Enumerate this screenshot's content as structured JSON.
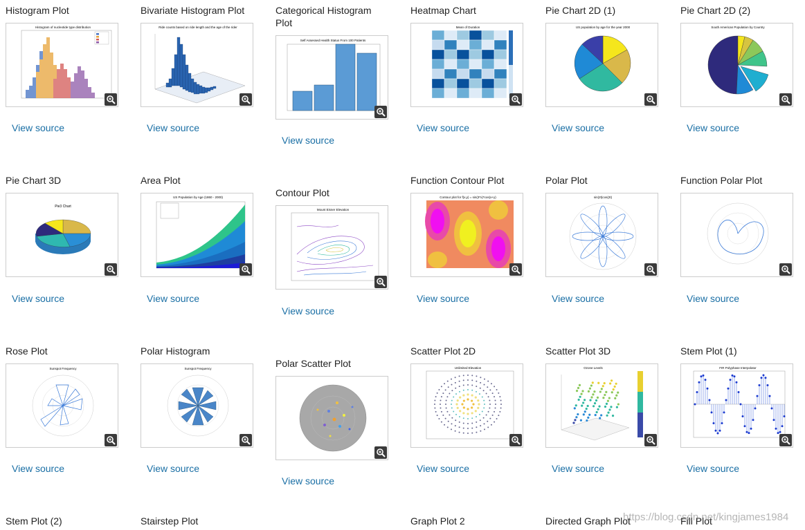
{
  "link_label": "View source",
  "watermark": "https://blog.csdn.net/kingjames1984",
  "thumb_titles": {
    "histogram": "Histogram of nucleotide type distribution",
    "bivariate": "Ride counts based on ride length and the age of the rider",
    "categorical": "Self Assessed Health Status From 100 Patients",
    "heatmap": "Mean of Duration",
    "pie2d1": "US population by age for the year 2000",
    "pie2d2": "South American Population by Country",
    "pie3d": "Pie3 Chart",
    "area": "US Population by Age (1860 - 2000)",
    "contour": "Mount Eisner Elevation",
    "fcontour": "Contour plot for f(x,y) = sin(3*x)*cos(x+y)",
    "polar": "sin(2t)cos(2t)",
    "rose": "Sunspot Frequency",
    "polarhist": "Sunspot Frequency",
    "scatter2d": "Unlimited Elevation",
    "scatter3d": "Ozone Levels",
    "stem1": "FIR Polyphase Interpolator"
  },
  "rows": [
    [
      {
        "title": "Histogram Plot"
      },
      {
        "title": "Bivariate Histogram Plot"
      },
      {
        "title": "Categorical Histogram Plot"
      },
      {
        "title": "Heatmap Chart"
      },
      {
        "title": "Pie Chart 2D (1)"
      },
      {
        "title": "Pie Chart 2D (2)"
      }
    ],
    [
      {
        "title": "Pie Chart 3D"
      },
      {
        "title": "Area Plot"
      },
      {
        "title": "Contour Plot"
      },
      {
        "title": "Function Contour Plot"
      },
      {
        "title": "Polar Plot"
      },
      {
        "title": "Function Polar Plot"
      }
    ],
    [
      {
        "title": "Rose Plot"
      },
      {
        "title": "Polar Histogram"
      },
      {
        "title": "Polar Scatter Plot"
      },
      {
        "title": "Scatter Plot 2D"
      },
      {
        "title": "Scatter Plot 3D"
      },
      {
        "title": "Stem Plot (1)"
      }
    ],
    [
      {
        "title": "Stem Plot (2)"
      },
      {
        "title": "Stairstep Plot"
      },
      {
        "title": ""
      },
      {
        "title": "Graph Plot 2"
      },
      {
        "title": "Directed Graph Plot"
      },
      {
        "title": "Fill Plot"
      }
    ]
  ]
}
